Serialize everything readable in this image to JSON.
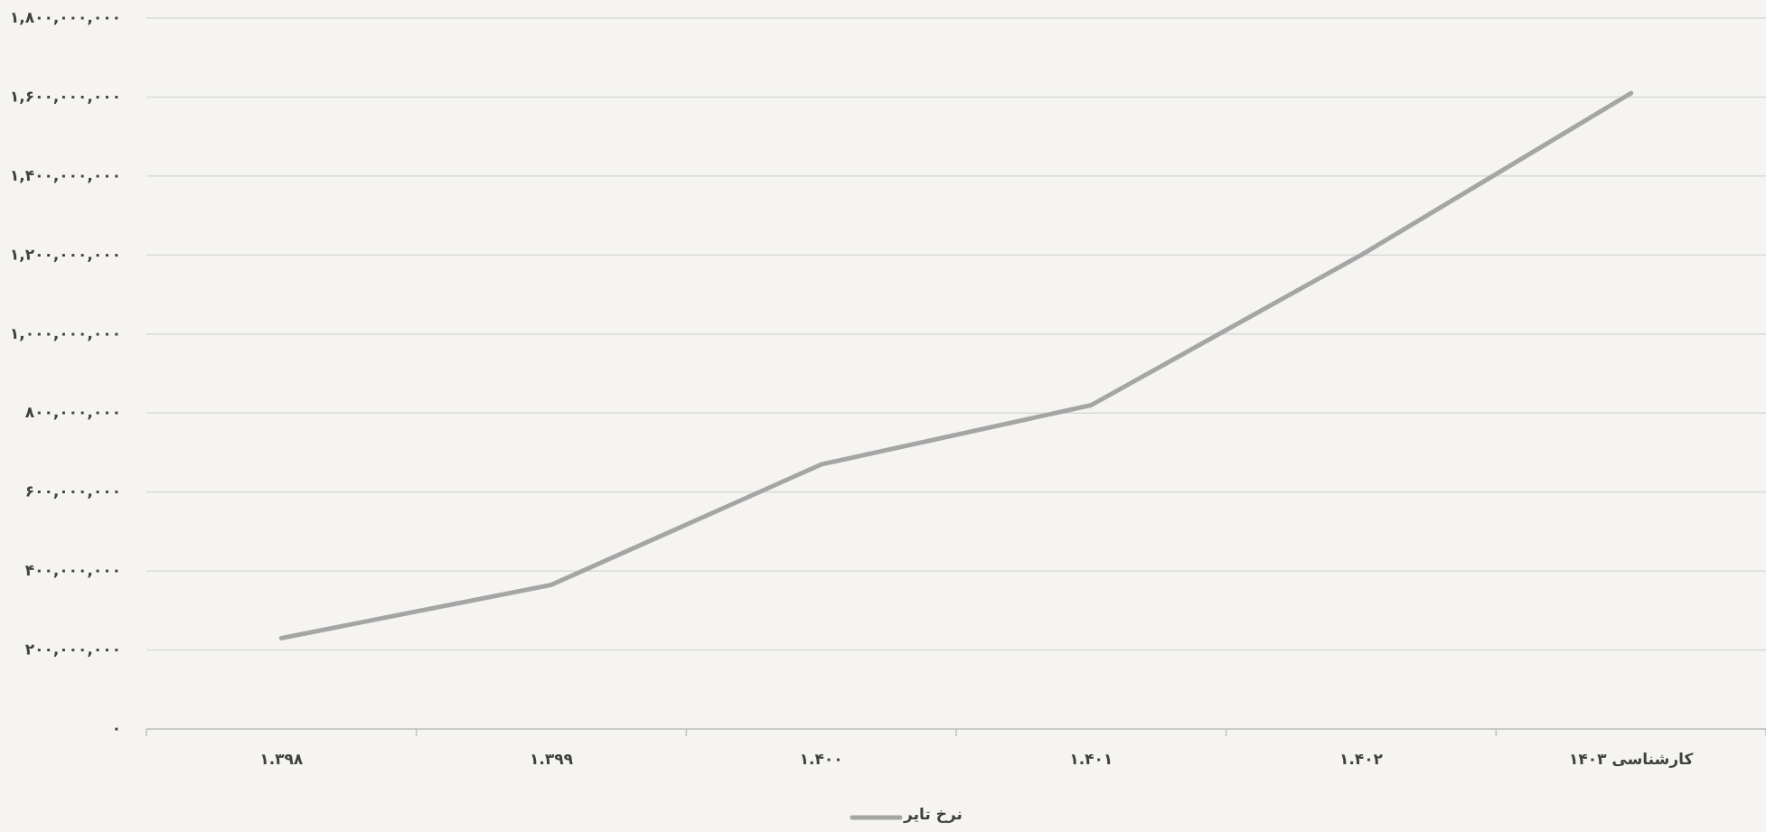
{
  "chart_data": {
    "type": "line",
    "categories": [
      "۱.۳۹۸",
      "۱.۳۹۹",
      "۱.۴۰۰",
      "۱.۴۰۱",
      "۱.۴۰۲",
      "کارشناسی ۱۴۰۳"
    ],
    "series": [
      {
        "name": "نرخ تایر",
        "color": "#a5a5a5",
        "values": [
          230000000,
          365000000,
          670000000,
          820000000,
          1200000000,
          1610000000
        ]
      }
    ],
    "ylim": [
      0,
      1800000000
    ],
    "yticks": [
      {
        "value": 0,
        "label": "۰"
      },
      {
        "value": 200000000,
        "label": "۲۰۰,۰۰۰,۰۰۰"
      },
      {
        "value": 400000000,
        "label": "۴۰۰,۰۰۰,۰۰۰"
      },
      {
        "value": 600000000,
        "label": "۶۰۰,۰۰۰,۰۰۰"
      },
      {
        "value": 800000000,
        "label": "۸۰۰,۰۰۰,۰۰۰"
      },
      {
        "value": 1000000000,
        "label": "۱,۰۰۰,۰۰۰,۰۰۰"
      },
      {
        "value": 1200000000,
        "label": "۱,۲۰۰,۰۰۰,۰۰۰"
      },
      {
        "value": 1400000000,
        "label": "۱,۴۰۰,۰۰۰,۰۰۰"
      },
      {
        "value": 1600000000,
        "label": "۱,۶۰۰,۰۰۰,۰۰۰"
      },
      {
        "value": 1800000000,
        "label": "۱,۸۰۰,۰۰۰,۰۰۰"
      }
    ],
    "grid": true,
    "legend": "bottom"
  }
}
